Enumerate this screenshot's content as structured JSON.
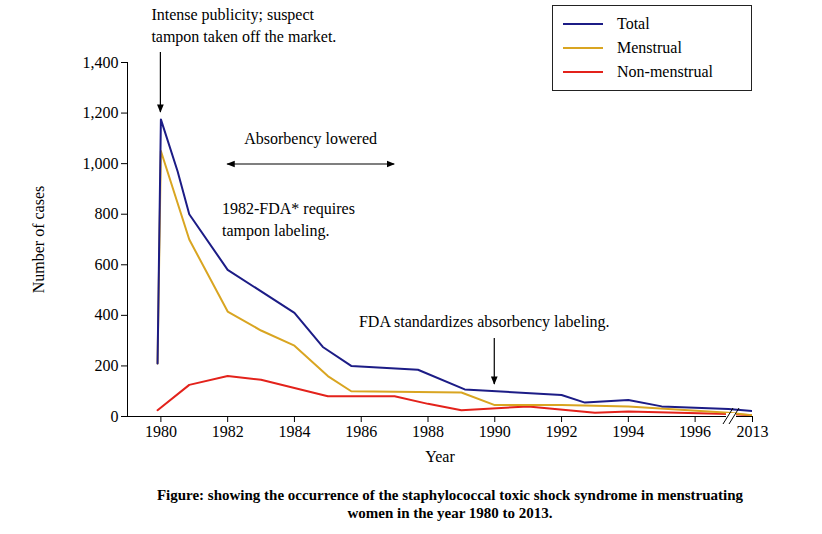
{
  "chart_data": {
    "type": "line",
    "title": "Figure: showing the occurrence of the staphylococcal toxic shock syndrome in menstruating women in the year 1980 to 2013.",
    "x_label": "Year",
    "y_label": "Number of cases",
    "xlim": [
      1979,
      2013
    ],
    "xticks": [
      1980,
      1982,
      1984,
      1986,
      1988,
      1990,
      1992,
      1994,
      1996,
      2013
    ],
    "ylim": [
      0,
      1400
    ],
    "yticks": [
      0,
      200,
      400,
      600,
      800,
      {
        "value": 1000,
        "label": "1,000"
      },
      {
        "value": 1200,
        "label": "1,200"
      },
      {
        "value": 1400,
        "label": "1,400"
      }
    ],
    "grid": false,
    "legend": "top-right",
    "series": [
      {
        "name": "Total",
        "color": "#1c1c86",
        "x": [
          1979.9,
          1980,
          1980.5,
          1980.85,
          1982,
          1984,
          1984.85,
          1985.7,
          1987.7,
          1989.1,
          1992,
          1992.7,
          1994,
          1995,
          1997,
          2013
        ],
        "values": [
          210,
          1175,
          970,
          800,
          580,
          410,
          275,
          200,
          185,
          107,
          85,
          55,
          65,
          40,
          30,
          22
        ]
      },
      {
        "name": "Menstrual",
        "color": "#d9a521",
        "x": [
          1979.9,
          1980,
          1980.85,
          1982,
          1983,
          1984,
          1985,
          1985.7,
          1989,
          1990,
          1992,
          1994,
          1997,
          2013
        ],
        "values": [
          210,
          1050,
          700,
          415,
          340,
          280,
          160,
          100,
          95,
          45,
          45,
          40,
          15,
          5
        ]
      },
      {
        "name": "Non-menstrual",
        "color": "#e3221b",
        "x": [
          1979.9,
          1980.85,
          1982,
          1983,
          1985,
          1987,
          1988,
          1989,
          1991,
          1993,
          1994,
          1997,
          2013
        ],
        "values": [
          25,
          125,
          160,
          145,
          80,
          80,
          50,
          25,
          40,
          15,
          20,
          10,
          5
        ]
      }
    ],
    "annotations": [
      {
        "text": "Intense publicity; suspect\ntampon taken off the market.",
        "x": 1980
      },
      {
        "text": "Absorbency lowered",
        "x": [
          1982,
          1987
        ]
      },
      {
        "text": "1982-FDA* requires\ntampon labeling."
      },
      {
        "text": "FDA standardizes absorbency labeling.",
        "x": 1990
      }
    ]
  }
}
